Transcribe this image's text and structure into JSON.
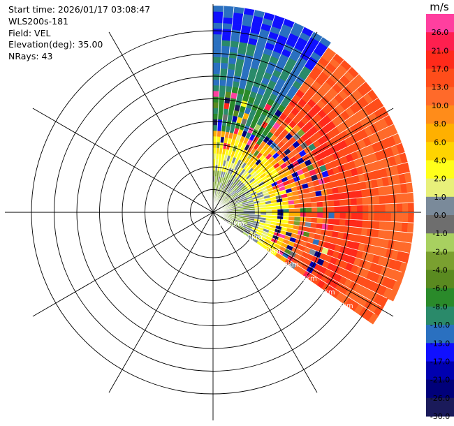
{
  "header": {
    "start_time": "Start time: 2026/01/17 03:08:47",
    "site": "WLS200s-181",
    "field": "Field: VEL",
    "elevation": "Elevation(deg): 35.00",
    "nrays": "NRays: 43"
  },
  "colorbar": {
    "unit": "m/s",
    "levels": [
      {
        "label": "26.0",
        "color": "#ff3f9f"
      },
      {
        "label": "21.0",
        "color": "#ff1f4f"
      },
      {
        "label": "17.0",
        "color": "#ff2a1a"
      },
      {
        "label": "13.0",
        "color": "#ff4d1a"
      },
      {
        "label": "10.0",
        "color": "#ff6a2a"
      },
      {
        "label": "8.0",
        "color": "#ff8c1a"
      },
      {
        "label": "6.0",
        "color": "#ffb000"
      },
      {
        "label": "4.0",
        "color": "#ffd400"
      },
      {
        "label": "2.0",
        "color": "#ffff1a"
      },
      {
        "label": "1.0",
        "color": "#e8f07a"
      },
      {
        "label": "0.0",
        "color": "#7a8a9a"
      },
      {
        "label": "-1.0",
        "color": "#6e6e6e"
      },
      {
        "label": "-2.0",
        "color": "#a8d060"
      },
      {
        "label": "-4.0",
        "color": "#7aa030"
      },
      {
        "label": "-6.0",
        "color": "#5a8a20"
      },
      {
        "label": "-8.0",
        "color": "#2a8a2a"
      },
      {
        "label": "-10.0",
        "color": "#2a8a6a"
      },
      {
        "label": "-13.0",
        "color": "#2a70c0"
      },
      {
        "label": "-17.0",
        "color": "#1010ff"
      },
      {
        "label": "-21.0",
        "color": "#0000b0"
      },
      {
        "label": "-26.0",
        "color": "#00007a"
      },
      {
        "label": "-30.0",
        "color": "#1a1a5a"
      }
    ]
  },
  "chart_data": {
    "type": "heatmap",
    "projection": "polar PPI",
    "field": "VEL",
    "units": "m/s",
    "elevation_deg": 35.0,
    "n_rays": 43,
    "azimuth_range_deg": [
      0,
      125
    ],
    "range_ring_labels": [
      "1.00km",
      "2.00km",
      "3.00km",
      "4.00km",
      "5.00km",
      "6.00km",
      "7.00km"
    ],
    "range_rings_km": [
      1,
      2,
      3,
      4,
      5,
      6,
      7,
      8
    ],
    "spokes_deg": [
      0,
      30,
      60,
      90,
      120,
      150,
      180,
      210,
      240,
      270,
      300,
      330
    ],
    "radial_velocity_by_range_km": [
      {
        "range_km": [
          0.1,
          1.0
        ],
        "value": -2.0
      },
      {
        "range_km": [
          1.0,
          1.8
        ],
        "value": -1.0
      },
      {
        "range_km": [
          1.8,
          2.6
        ],
        "value": 2.0
      },
      {
        "range_km": [
          2.6,
          3.2
        ],
        "value": 4.0
      },
      {
        "range_km": [
          3.2,
          3.8
        ],
        "value": 8.0
      },
      {
        "range_km": [
          3.8,
          5.0
        ],
        "value": 13.0
      },
      {
        "range_km": [
          5.0,
          6.5
        ],
        "value": 17.0
      },
      {
        "range_km": [
          6.5,
          8.8
        ],
        "value": 13.0
      }
    ],
    "north_sector_velocity_by_range_km": [
      {
        "range_km": [
          3.5,
          5.5
        ],
        "value": -8.0
      },
      {
        "range_km": [
          5.5,
          7.5
        ],
        "value": -10.0
      },
      {
        "range_km": [
          7.5,
          9.0
        ],
        "value": -13.0
      }
    ]
  }
}
